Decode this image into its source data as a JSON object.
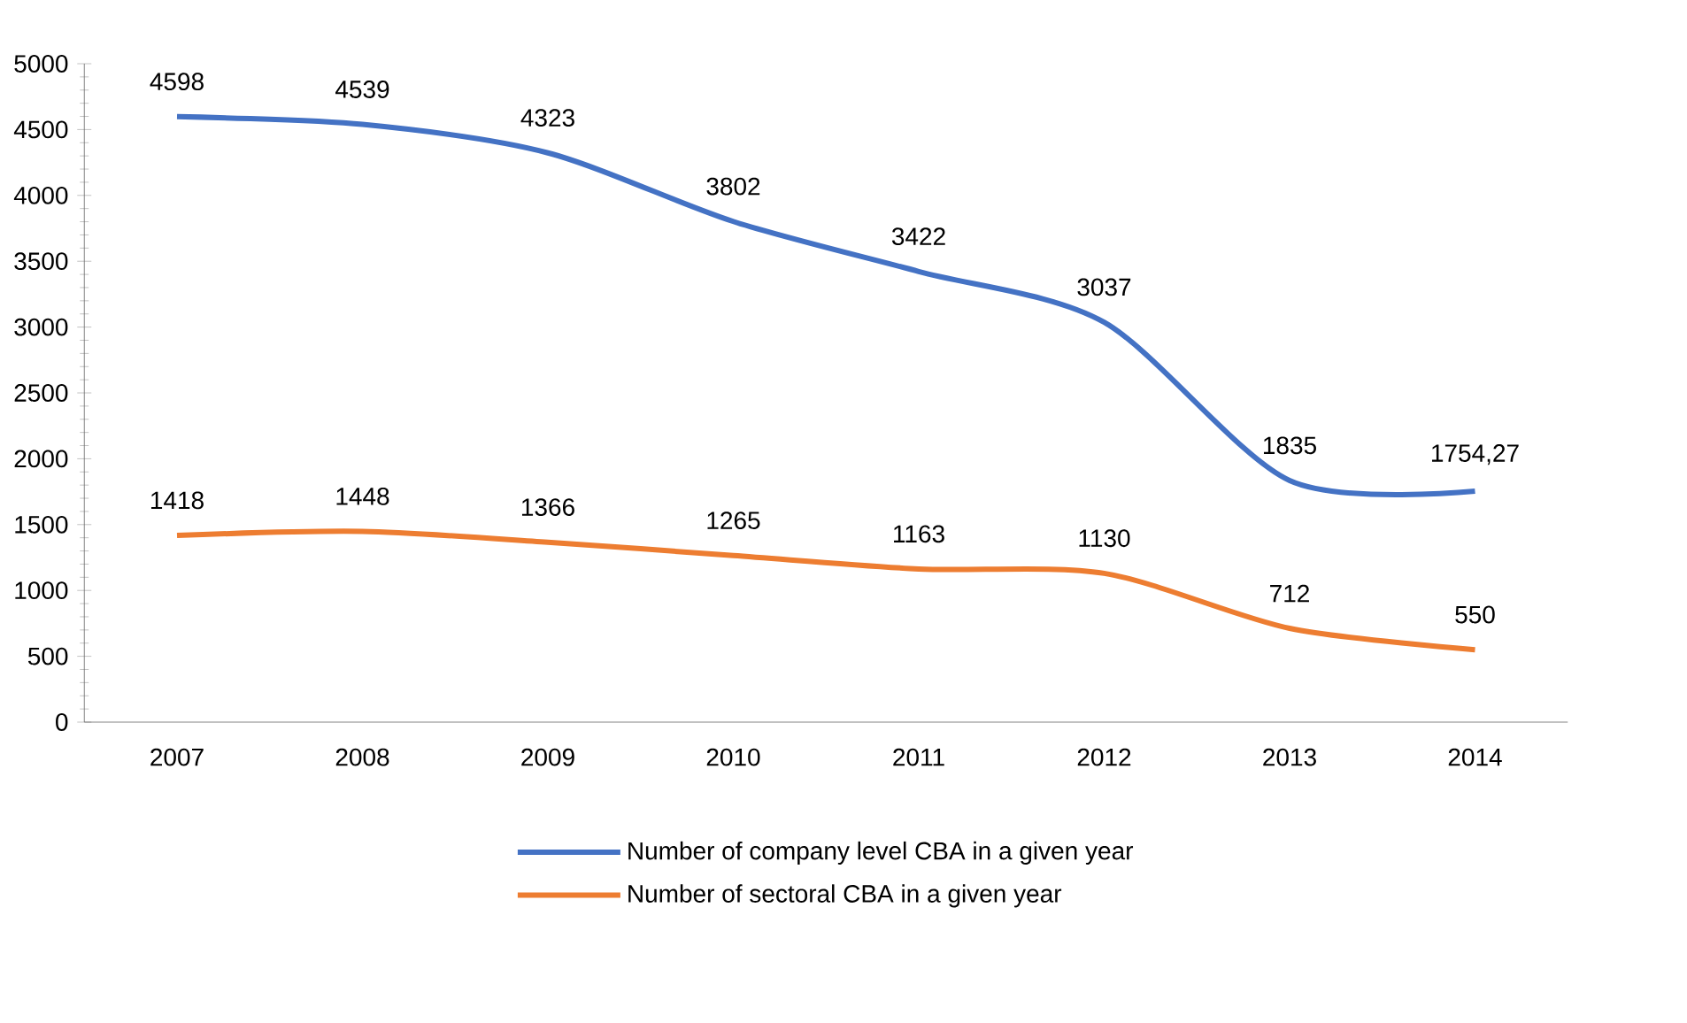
{
  "chart_data": {
    "type": "line",
    "categories": [
      "2007",
      "2008",
      "2009",
      "2010",
      "2011",
      "2012",
      "2013",
      "2014"
    ],
    "series": [
      {
        "name": "Number of company level CBA in a given year",
        "color": "#4472c4",
        "values": [
          4598,
          4539,
          4323,
          3802,
          3422,
          3037,
          1835,
          1754.27
        ],
        "value_labels": [
          "4598",
          "4539",
          "4323",
          "3802",
          "3422",
          "3037",
          "1835",
          "1754,27"
        ]
      },
      {
        "name": "Number of sectoral CBA in a given year",
        "color": "#ed7d31",
        "values": [
          1418,
          1448,
          1366,
          1265,
          1163,
          1130,
          712,
          550
        ],
        "value_labels": [
          "1418",
          "1448",
          "1366",
          "1265",
          "1163",
          "1130",
          "712",
          "550"
        ]
      }
    ],
    "ylim": [
      0,
      5000
    ],
    "yticks": [
      0,
      500,
      1000,
      1500,
      2000,
      2500,
      3000,
      3500,
      4000,
      4500,
      5000
    ],
    "legend": "bottom",
    "grid": false,
    "marker": "none",
    "line_style": "solid"
  }
}
